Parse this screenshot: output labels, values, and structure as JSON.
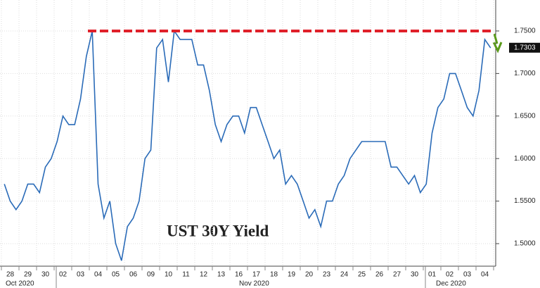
{
  "chart_data": {
    "type": "line",
    "title": "UST 30Y Yield",
    "categories": [
      null,
      "28",
      null,
      null,
      "29",
      null,
      null,
      "30",
      null,
      null,
      "02",
      null,
      null,
      "03",
      null,
      null,
      "04",
      null,
      null,
      "05",
      null,
      null,
      "06",
      null,
      null,
      "09",
      null,
      null,
      "10",
      null,
      null,
      "11",
      null,
      null,
      "12",
      null,
      null,
      "13",
      null,
      null,
      "16",
      null,
      null,
      "17",
      null,
      null,
      "18",
      null,
      null,
      "19",
      null,
      null,
      "20",
      null,
      null,
      "23",
      null,
      null,
      "24",
      null,
      null,
      "25",
      null,
      null,
      "26",
      null,
      null,
      "27",
      null,
      null,
      "30",
      null,
      null,
      "01",
      null,
      null,
      "02",
      null,
      null,
      "03",
      null,
      null,
      "04",
      null
    ],
    "months": [
      "Oct 2020",
      "Nov 2020",
      "Dec 2020"
    ],
    "series": [
      {
        "color": "#2a6bb8",
        "values": [
          1.57,
          1.55,
          1.54,
          1.55,
          1.57,
          1.57,
          1.56,
          1.59,
          1.6,
          1.62,
          1.65,
          1.64,
          1.64,
          1.67,
          1.72,
          1.75,
          1.57,
          1.53,
          1.55,
          1.5,
          1.48,
          1.52,
          1.53,
          1.55,
          1.6,
          1.61,
          1.73,
          1.74,
          1.69,
          1.75,
          1.74,
          1.74,
          1.74,
          1.71,
          1.71,
          1.68,
          1.64,
          1.62,
          1.64,
          1.65,
          1.65,
          1.63,
          1.66,
          1.66,
          1.64,
          1.62,
          1.6,
          1.61,
          1.57,
          1.58,
          1.57,
          1.55,
          1.53,
          1.54,
          1.52,
          1.55,
          1.55,
          1.57,
          1.58,
          1.6,
          1.61,
          1.62,
          1.62,
          1.62,
          1.62,
          1.62,
          1.59,
          1.59,
          1.58,
          1.57,
          1.58,
          1.56,
          1.57,
          1.63,
          1.66,
          1.67,
          1.7,
          1.7,
          1.68,
          1.66,
          1.65,
          1.68,
          1.74,
          1.73
        ]
      }
    ],
    "ylim": [
      1.4735,
      1.7864
    ],
    "yticks": [
      {
        "value": 1.5,
        "label": "1.5000"
      },
      {
        "value": 1.55,
        "label": "1.5500"
      },
      {
        "value": 1.6,
        "label": "1.6000"
      },
      {
        "value": 1.65,
        "label": "1.6500"
      },
      {
        "value": 1.7,
        "label": "1.7000"
      },
      {
        "value": 1.75,
        "label": "1.7500"
      }
    ],
    "reference_line": 1.75,
    "reference_color": "#e0202a",
    "last_value": 1.7303,
    "grid": true
  }
}
